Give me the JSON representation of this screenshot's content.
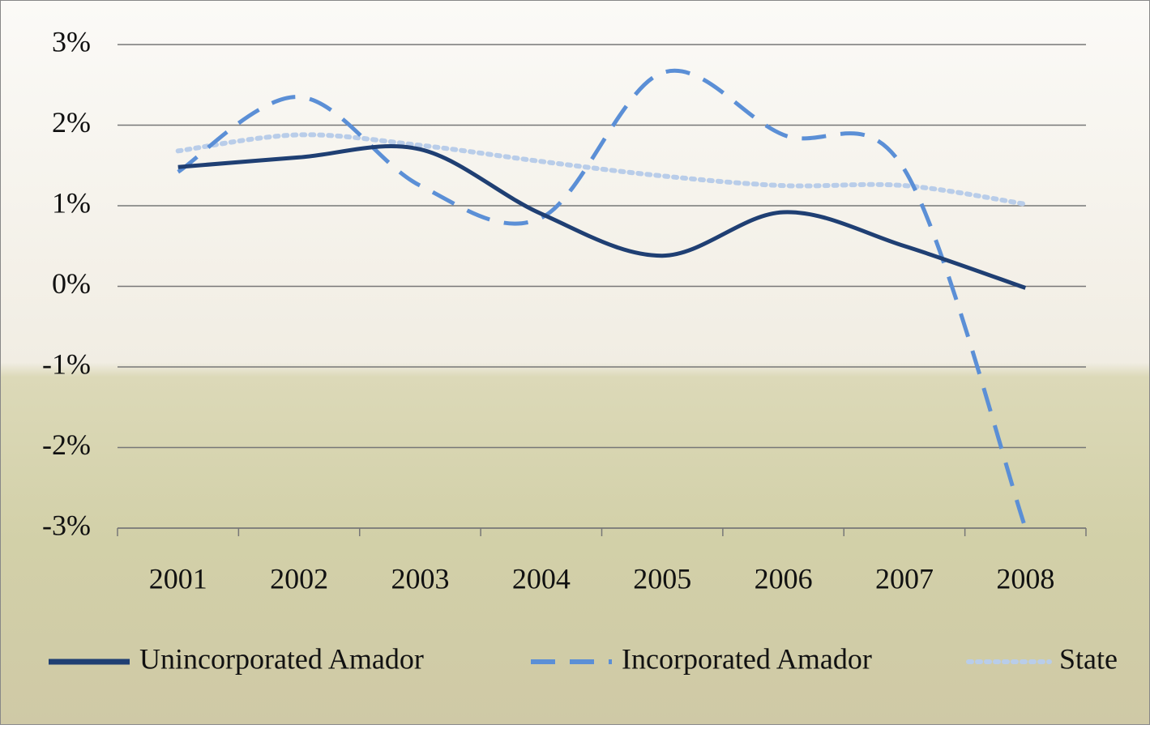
{
  "chart_data": {
    "type": "line",
    "categories": [
      "2001",
      "2002",
      "2003",
      "2004",
      "2005",
      "2006",
      "2007",
      "2008"
    ],
    "series": [
      {
        "name": "Unincorporated Amador",
        "color": "#1f3f73",
        "style": "solid",
        "values": [
          1.48,
          1.6,
          1.7,
          0.9,
          0.38,
          0.92,
          0.5,
          -0.02
        ]
      },
      {
        "name": "Incorporated Amador",
        "color": "#5b8fd6",
        "style": "dashed",
        "values": [
          1.42,
          2.35,
          1.25,
          0.85,
          2.65,
          1.88,
          1.45,
          -3.0
        ]
      },
      {
        "name": "State",
        "color": "#b9cde9",
        "style": "dotted",
        "values": [
          1.68,
          1.88,
          1.75,
          1.55,
          1.37,
          1.25,
          1.25,
          1.02
        ]
      }
    ],
    "ylim": [
      -3,
      3
    ],
    "yticks": [
      {
        "value": -3,
        "label": "-3%"
      },
      {
        "value": -2,
        "label": "-2%"
      },
      {
        "value": -1,
        "label": "-1%"
      },
      {
        "value": 0,
        "label": "0%"
      },
      {
        "value": 1,
        "label": "1%"
      },
      {
        "value": 2,
        "label": "2%"
      },
      {
        "value": 3,
        "label": "3%"
      }
    ],
    "grid": true,
    "legend": "bottom"
  }
}
